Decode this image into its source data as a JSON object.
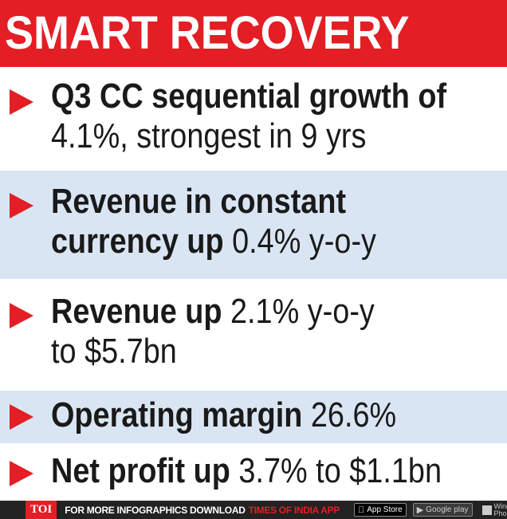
{
  "title": "SMART RECOVERY",
  "colors": {
    "accent": "#e31e24",
    "band": "#dae5f4",
    "text": "#1a1a1a"
  },
  "items": [
    {
      "lines": [
        [
          {
            "t": "Q3 CC sequential growth of",
            "b": true
          }
        ],
        [
          {
            "t": "4.1%, strongest in 9 yrs",
            "b": false
          }
        ]
      ]
    },
    {
      "lines": [
        [
          {
            "t": "Revenue in constant",
            "b": true
          }
        ],
        [
          {
            "t": "currency up",
            "b": true
          },
          {
            "t": " 0.4% y-o-y",
            "b": false
          }
        ]
      ]
    },
    {
      "lines": [
        [
          {
            "t": "Revenue up",
            "b": true
          },
          {
            "t": " 2.1% y-o-y",
            "b": false
          }
        ],
        [
          {
            "t": "to $5.7bn",
            "b": false
          }
        ]
      ]
    },
    {
      "lines": [
        [
          {
            "t": "Operating margin",
            "b": true
          },
          {
            "t": " 26.6%",
            "b": false
          }
        ]
      ]
    },
    {
      "lines": [
        [
          {
            "t": "Net profit up",
            "b": true
          },
          {
            "t": " 3.7% to $1.1bn",
            "b": false
          }
        ]
      ]
    }
  ],
  "footer": {
    "logo": "TOI",
    "promo": "FOR MORE  INFOGRAPHICS DOWNLOAD",
    "promo_app": "TIMES OF INDIA  APP",
    "app_store": "App Store",
    "google_play": "Google play",
    "windows_phone": "Windows Phone",
    "app_store_icon": "apple-icon",
    "google_play_icon": "play-icon",
    "windows_icon": "windows-icon"
  }
}
